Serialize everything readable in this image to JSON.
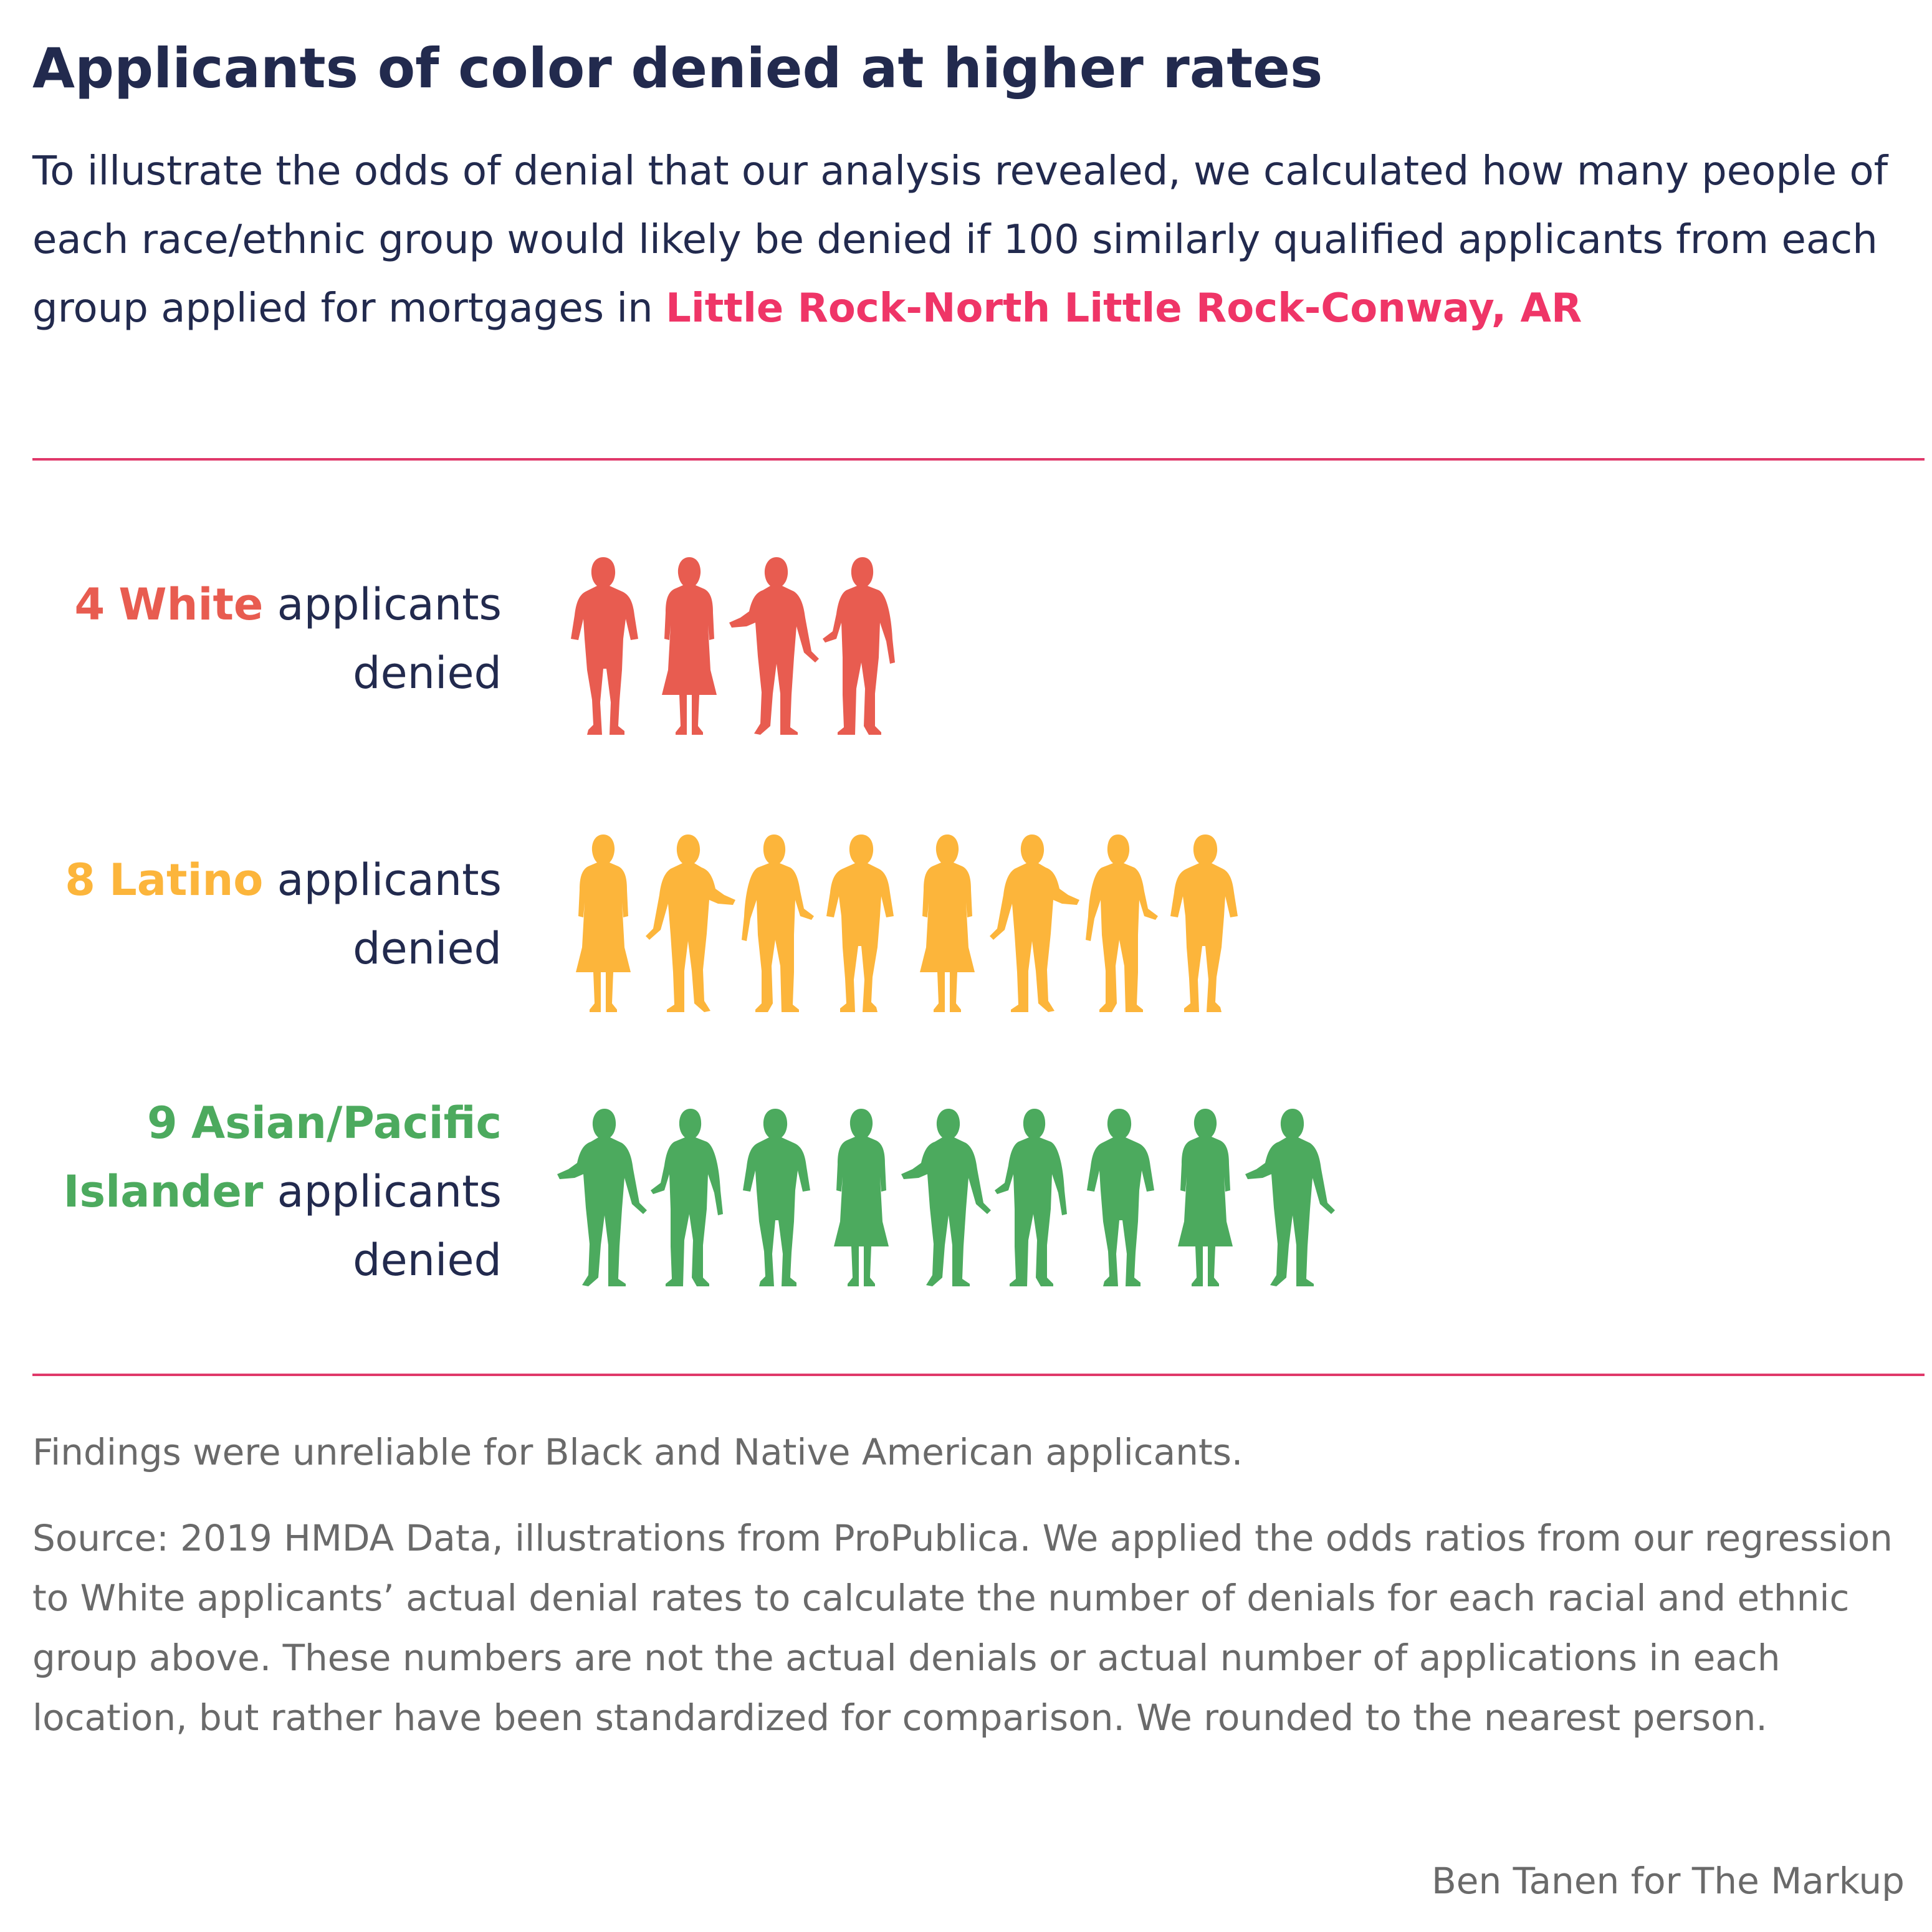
{
  "header": {
    "title": "Applicants of color denied at higher rates",
    "intro": "To illustrate the odds of denial that our analysis revealed, we calculated how many people of each race/ethnic group would likely be denied if 100 similarly qualified applicants from each group applied for mortgages in ",
    "place": "Little Rock-North Little Rock-Conway, AR"
  },
  "colors": {
    "White": "#e85c50",
    "Latino": "#fcb53b",
    "Asian/Pacific Islander": "#4caa5e",
    "accent": "#ef3567",
    "rule": "#e0386a",
    "text": "#222a4e",
    "note": "#6a6a6a"
  },
  "chart_data": {
    "type": "pictograph",
    "unit": "applicants denied out of 100 similarly qualified applicants",
    "groups": [
      {
        "name": "White",
        "value": 4,
        "count_label": "4",
        "group_label": "White",
        "suffix_1": "applicants",
        "suffix_2": "denied",
        "color": "#e85c50"
      },
      {
        "name": "Latino",
        "value": 8,
        "count_label": "8",
        "group_label": "Latino",
        "suffix_1": "applicants",
        "suffix_2": "denied",
        "color": "#fcb53b"
      },
      {
        "name": "Asian/Pacific Islander",
        "value": 9,
        "count_label": "9",
        "group_label_1": "Asian/Pacific",
        "group_label_2": "Islander",
        "suffix_1": "applicants",
        "suffix_2": "denied",
        "color": "#4caa5e"
      }
    ]
  },
  "footer": {
    "note": "Findings were unreliable for Black and Native American applicants.",
    "source": "Source: 2019 HMDA Data, illustrations from ProPublica. We applied the odds ratios from our regression to White applicants’ actual denial rates to calculate the number of denials for each racial and ethnic group above. These numbers are not the actual denials or actual number of applications in each location, but rather have been standardized for comparison. We rounded to the nearest person.",
    "credit": "Ben Tanen for The Markup"
  }
}
